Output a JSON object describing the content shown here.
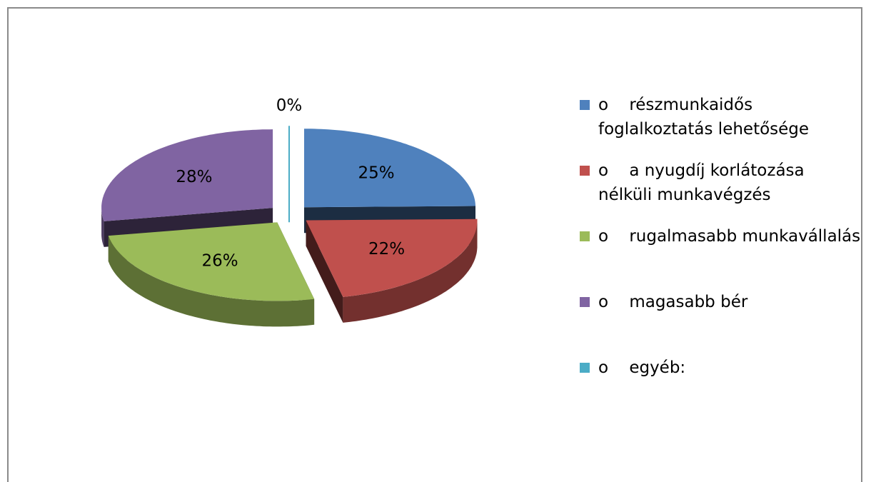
{
  "chart_data": {
    "type": "pie3d",
    "categories": [
      "o    részmunkaidős foglalkoztatás lehetősége",
      "o    a nyugdíj korlátozása nélküli munkavégzés",
      "o    rugalmasabb munkavállalás",
      "o    magasabb bér",
      "o    egyéb:"
    ],
    "values": [
      25,
      22,
      26,
      28,
      0
    ],
    "value_labels": [
      "25%",
      "22%",
      "26%",
      "28%",
      "0%"
    ],
    "colors": [
      "#4f81bd",
      "#c0504d",
      "#9bbb59",
      "#8064a2",
      "#4bacc6"
    ],
    "legend": "right"
  }
}
